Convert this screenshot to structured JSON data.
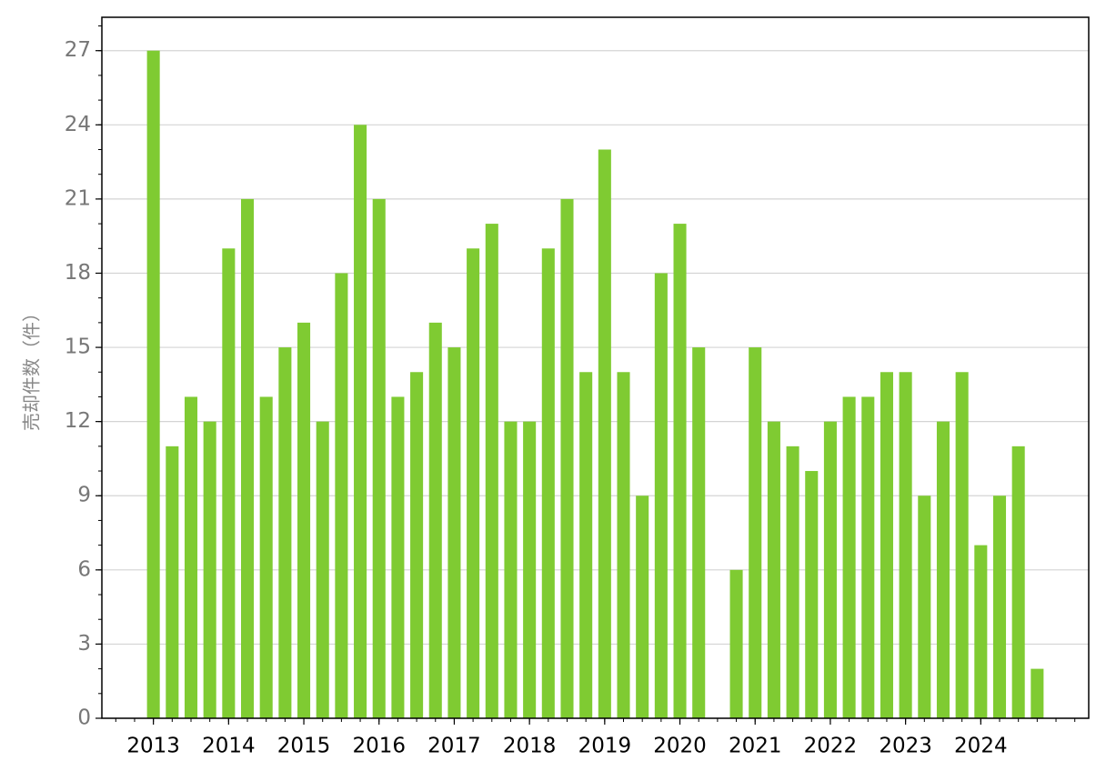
{
  "chart_data": {
    "type": "bar",
    "y_label": "売却件数（件）",
    "categories": [
      "2013",
      null,
      null,
      null,
      "2014",
      null,
      null,
      null,
      "2015",
      null,
      null,
      null,
      "2016",
      null,
      null,
      null,
      "2017",
      null,
      null,
      null,
      "2018",
      null,
      null,
      null,
      "2019",
      null,
      null,
      null,
      "2020",
      null,
      null,
      null,
      "2021",
      null,
      null,
      null,
      "2022",
      null,
      null,
      null,
      "2023",
      null,
      null,
      null,
      "2024",
      null,
      null,
      null
    ],
    "values": [
      27,
      11,
      13,
      12,
      19,
      21,
      13,
      15,
      16,
      12,
      18,
      24,
      21,
      13,
      14,
      16,
      15,
      19,
      20,
      12,
      12,
      19,
      21,
      14,
      23,
      14,
      9,
      18,
      20,
      15,
      null,
      6,
      15,
      12,
      11,
      10,
      12,
      13,
      13,
      14,
      14,
      9,
      12,
      14,
      7,
      9,
      11,
      2
    ],
    "color": "#7fcb32",
    "ylim": [
      0,
      28.35
    ],
    "yticks": [
      0,
      3,
      6,
      9,
      12,
      15,
      18,
      21,
      24,
      27
    ],
    "grid": true
  }
}
